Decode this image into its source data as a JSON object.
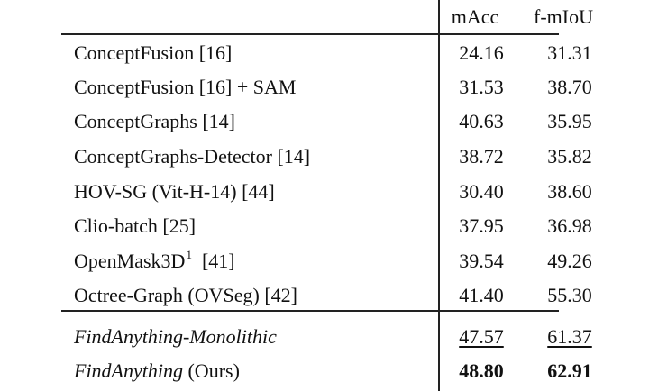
{
  "headers": {
    "method": "",
    "macc": "mAcc",
    "fmiou": "f-mIoU"
  },
  "rows": [
    {
      "method": "ConceptFusion [16]",
      "macc": "24.16",
      "fmiou": "31.31"
    },
    {
      "method": "ConceptFusion [16] + SAM",
      "macc": "31.53",
      "fmiou": "38.70"
    },
    {
      "method": "ConceptGraphs [14]",
      "macc": "40.63",
      "fmiou": "35.95"
    },
    {
      "method": "ConceptGraphs-Detector [14]",
      "macc": "38.72",
      "fmiou": "35.82"
    },
    {
      "method": "HOV-SG (Vit-H-14) [44]",
      "macc": "30.40",
      "fmiou": "38.60"
    },
    {
      "method": "Clio-batch [25]",
      "macc": "37.95",
      "fmiou": "36.98"
    },
    {
      "method": "OpenMask3D",
      "sup": "1",
      "suffix": "[41]",
      "macc": "39.54",
      "fmiou": "49.26"
    },
    {
      "method": "Octree-Graph (OVSeg) [42]",
      "macc": "41.40",
      "fmiou": "55.30"
    }
  ],
  "ours": [
    {
      "method": "FindAnything-Monolithic",
      "macc": "47.57",
      "fmiou": "61.37"
    },
    {
      "method": "FindAnything",
      "suffix": "(Ours)",
      "macc": "48.80",
      "fmiou": "62.91"
    }
  ]
}
